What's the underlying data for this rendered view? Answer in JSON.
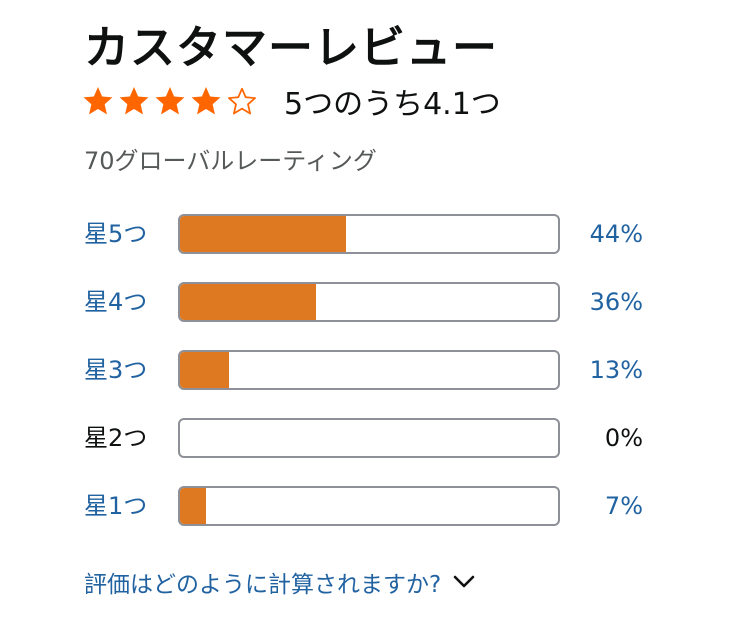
{
  "header": {
    "title": "カスタマーレビュー"
  },
  "rating": {
    "stars_filled": 4,
    "stars_total": 5,
    "star_color": "#ff6600",
    "text": "5つのうち4.1つ"
  },
  "total_ratings": "70グローバルレーティング",
  "histogram": [
    {
      "label": "星5つ",
      "percent_text": "44%",
      "value": 44,
      "link": true
    },
    {
      "label": "星4つ",
      "percent_text": "36%",
      "value": 36,
      "link": true
    },
    {
      "label": "星3つ",
      "percent_text": "13%",
      "value": 13,
      "link": true
    },
    {
      "label": "星2つ",
      "percent_text": "0%",
      "value": 0,
      "link": false
    },
    {
      "label": "星1つ",
      "percent_text": "7%",
      "value": 7,
      "link": true
    }
  ],
  "colors": {
    "bar_fill": "#de7921",
    "bar_border": "#8d9096",
    "link": "#2162a1",
    "text": "#0f1111"
  },
  "how_calculated": {
    "text": "評価はどのように計算されますか?",
    "icon": "chevron-down-icon"
  }
}
